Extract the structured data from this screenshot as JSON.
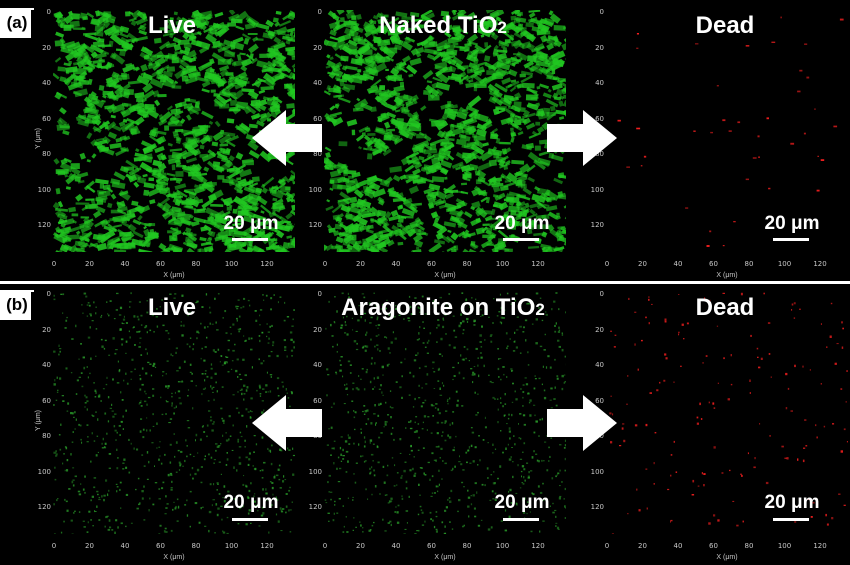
{
  "rows": [
    {
      "label": "(a)",
      "panels": [
        {
          "title": "Live",
          "title_sub": "",
          "scale": "20 μm",
          "color": "#21c821",
          "density": "high"
        },
        {
          "title": "Naked TiO",
          "title_sub": "2",
          "scale": "20 μm",
          "color": "#21c821",
          "density": "high"
        },
        {
          "title": "Dead",
          "title_sub": "",
          "scale": "20 μm",
          "color": "#ff2020",
          "density": "sparse"
        }
      ]
    },
    {
      "label": "(b)",
      "panels": [
        {
          "title": "Live",
          "title_sub": "",
          "scale": "20 μm",
          "color": "#2fb02f",
          "density": "low"
        },
        {
          "title": "Aragonite on TiO",
          "title_sub": "2",
          "scale": "20 μm",
          "color": "#2fb02f",
          "density": "low"
        },
        {
          "title": "Dead",
          "title_sub": "",
          "scale": "20 μm",
          "color": "#ff2020",
          "density": "medium"
        }
      ]
    }
  ],
  "axes": {
    "x_title": "X (μm)",
    "y_title": "Y (μm)",
    "x_ticks": [
      "0",
      "20",
      "40",
      "60",
      "80",
      "100",
      "120"
    ],
    "y_ticks": [
      "0",
      "20",
      "40",
      "60",
      "80",
      "100",
      "120"
    ]
  }
}
